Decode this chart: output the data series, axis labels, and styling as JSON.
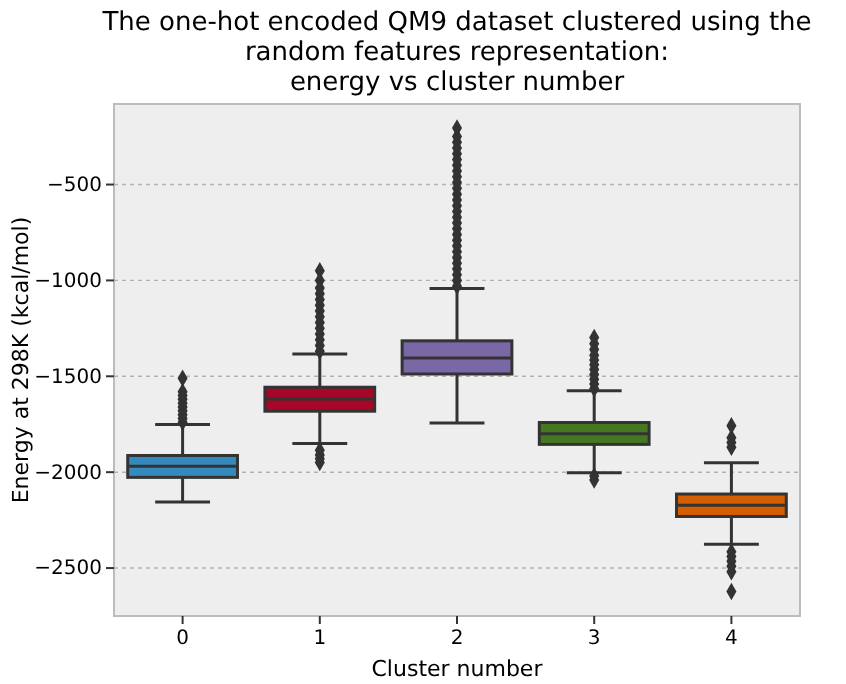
{
  "chart_data": {
    "type": "box",
    "title": "The one-hot encoded QM9 dataset clustered using the\nrandom features representation:\nenergy vs cluster number",
    "xlabel": "Cluster number",
    "ylabel": "Energy at 298K (kcal/mol)",
    "categories": [
      "0",
      "1",
      "2",
      "3",
      "4"
    ],
    "colors": [
      "#348abd",
      "#a60628",
      "#7a68a6",
      "#467821",
      "#d55e00"
    ],
    "boxes": [
      {
        "low": -2156,
        "q1": -2027,
        "median": -1969,
        "q3": -1913,
        "high": -1751,
        "outliers": [
          -1740,
          -1720,
          -1700,
          -1680,
          -1660,
          -1640,
          -1620,
          -1600,
          -1580,
          -1510
        ]
      },
      {
        "low": -1851,
        "q1": -1682,
        "median": -1619,
        "q3": -1557,
        "high": -1384,
        "outliers": [
          -1370,
          -1340,
          -1310,
          -1280,
          -1250,
          -1220,
          -1190,
          -1160,
          -1130,
          -1100,
          -1070,
          -1040,
          -1000,
          -950,
          -1885,
          -1910,
          -1930,
          -1950
        ]
      },
      {
        "low": -1744,
        "q1": -1488,
        "median": -1405,
        "q3": -1315,
        "high": -1042,
        "outliers": [
          -1030,
          -1000,
          -970,
          -940,
          -910,
          -880,
          -850,
          -820,
          -790,
          -760,
          -730,
          -700,
          -670,
          -640,
          -610,
          -580,
          -550,
          -520,
          -490,
          -460,
          -430,
          -400,
          -370,
          -340,
          -310,
          -280,
          -250,
          -205
        ]
      },
      {
        "low": -2003,
        "q1": -1855,
        "median": -1799,
        "q3": -1741,
        "high": -1575,
        "outliers": [
          -1565,
          -1540,
          -1515,
          -1490,
          -1465,
          -1440,
          -1415,
          -1390,
          -1360,
          -1330,
          -1298,
          -2020,
          -2041
        ]
      },
      {
        "low": -2376,
        "q1": -2231,
        "median": -2172,
        "q3": -2114,
        "high": -1951,
        "outliers": [
          -1870,
          -1845,
          -1820,
          -1758,
          -2415,
          -2440,
          -2465,
          -2490,
          -2519,
          -2622
        ]
      }
    ],
    "ylim": [
      -2750,
      -80
    ],
    "yticks": [
      -500,
      -1000,
      -1500,
      -2000,
      -2500
    ],
    "grid": "y"
  }
}
